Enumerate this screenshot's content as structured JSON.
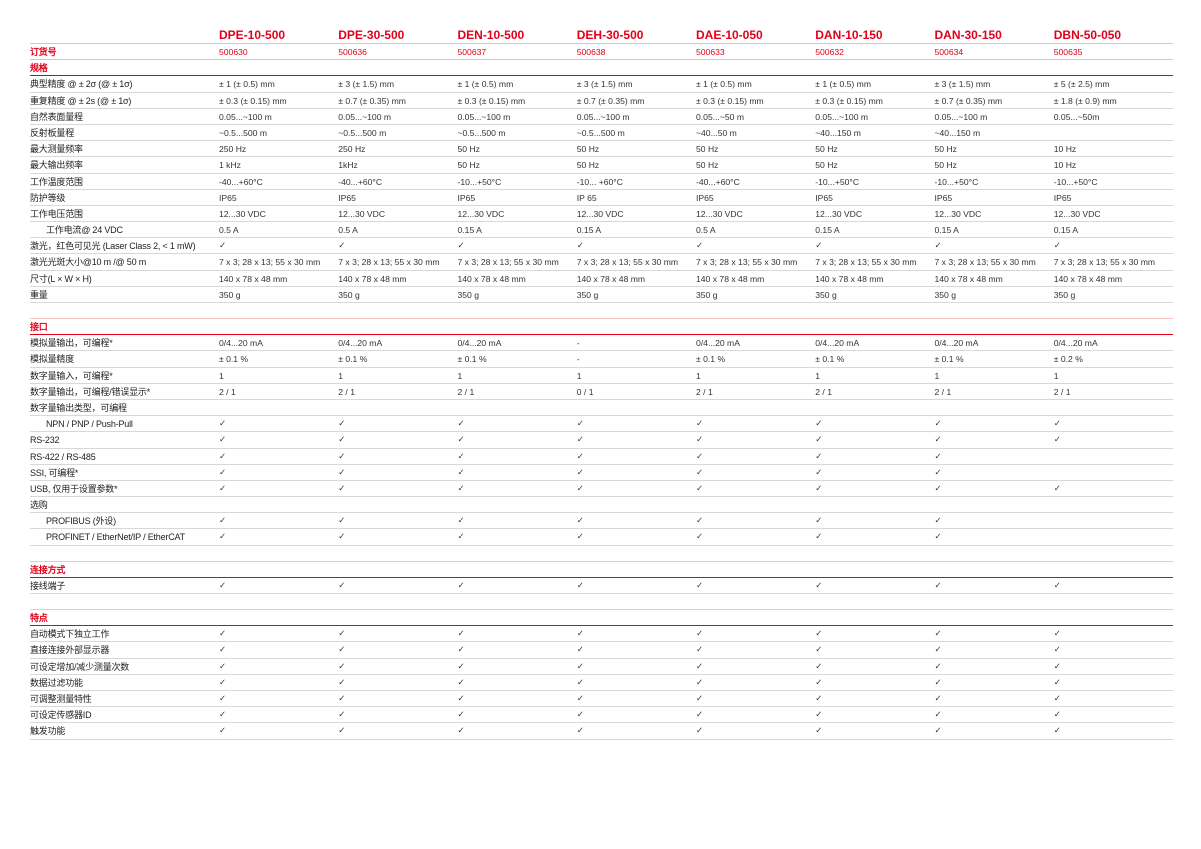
{
  "columns": [
    "DPE-10-500",
    "DPE-30-500",
    "DEN-10-500",
    "DEH-30-500",
    "DAE-10-050",
    "DAN-10-150",
    "DAN-30-150",
    "DBN-50-050"
  ],
  "order": {
    "label": "订货号",
    "values": [
      "500630",
      "500636",
      "500637",
      "500638",
      "500633",
      "500632",
      "500634",
      "500635"
    ]
  },
  "sections": [
    {
      "title": "规格",
      "rows": [
        {
          "label": "典型精度 @ ± 2σ (@ ± 1σ)",
          "values": [
            "± 1 (± 0.5) mm",
            "± 3 (± 1.5) mm",
            "± 1 (± 0.5) mm",
            "± 3 (± 1.5) mm",
            "± 1 (± 0.5) mm",
            "± 1 (± 0.5) mm",
            "± 3 (± 1.5) mm",
            "± 5 (± 2.5) mm"
          ]
        },
        {
          "label": "重复精度 @ ± 2s (@ ± 1σ)",
          "values": [
            "± 0.3 (± 0.15) mm",
            "± 0.7 (± 0.35) mm",
            "± 0.3 (± 0.15) mm",
            "± 0.7 (± 0.35) mm",
            "± 0.3 (± 0.15) mm",
            "± 0.3 (± 0.15) mm",
            "± 0.7 (± 0.35) mm",
            "± 1.8 (± 0.9) mm"
          ]
        },
        {
          "label": "自然表面量程",
          "values": [
            "0.05...~100 m",
            "0.05...~100 m",
            "0.05...~100 m",
            "0.05...~100 m",
            "0.05...~50 m",
            "0.05...~100 m",
            "0.05...~100 m",
            "0.05...~50m"
          ]
        },
        {
          "label": "反射板量程",
          "values": [
            " ~0.5...500 m",
            " ~0.5...500 m",
            " ~0.5...500 m",
            " ~0.5...500 m",
            "~40...50 m",
            "~40...150 m",
            "~40...150 m",
            ""
          ]
        },
        {
          "label": "最大测量频率",
          "values": [
            "250 Hz",
            "250 Hz",
            "50 Hz",
            "50 Hz",
            "50 Hz",
            "50 Hz",
            "50 Hz",
            "10 Hz"
          ]
        },
        {
          "label": "最大输出频率",
          "values": [
            "1 kHz",
            "1kHz",
            "50 Hz",
            "50 Hz",
            "50 Hz",
            "50 Hz",
            "50 Hz",
            "10 Hz"
          ]
        },
        {
          "label": "工作温度范围",
          "values": [
            "-40...+60°C",
            "-40...+60°C",
            "-10...+50°C",
            "-10... +60°C",
            "-40...+60°C",
            "-10...+50°C",
            "-10...+50°C",
            "-10...+50°C"
          ]
        },
        {
          "label": "防护等级",
          "values": [
            "IP65",
            "IP65",
            "IP65",
            "IP 65",
            "IP65",
            "IP65",
            "IP65",
            "IP65"
          ]
        },
        {
          "label": "工作电压范围",
          "values": [
            "12...30 VDC",
            "12...30 VDC",
            "12...30 VDC",
            "12...30 VDC",
            "12...30 VDC",
            "12...30 VDC",
            "12...30 VDC",
            "12...30 VDC"
          ]
        },
        {
          "label": "工作电流@ 24 VDC",
          "indent": true,
          "values": [
            "0.5 A",
            "0.5 A",
            "0.15 A",
            "0.15 A",
            "0.5 A",
            "0.15 A",
            "0.15 A",
            "0.15 A"
          ]
        },
        {
          "label": "激光，红色可见光 (Laser Class 2, < 1 mW)",
          "values": [
            "✓",
            "✓",
            "✓",
            "✓",
            "✓",
            "✓",
            "✓",
            "✓"
          ]
        },
        {
          "label": "激光光斑大小@10 m /@ 50 m",
          "values": [
            "7 x 3; 28 x 13; 55 x 30 mm",
            "7 x 3; 28 x 13; 55 x 30 mm",
            "7 x 3; 28 x 13; 55 x 30 mm",
            "7 x 3; 28 x 13; 55 x 30 mm",
            "7 x 3; 28 x 13; 55 x 30 mm",
            "7 x 3; 28 x 13; 55 x 30 mm",
            "7 x 3; 28 x 13; 55 x 30 mm",
            "7 x 3; 28 x 13; 55 x 30 mm"
          ]
        },
        {
          "label": "尺寸(L × W × H)",
          "values": [
            "140 x 78 x 48 mm",
            "140 x 78 x 48 mm",
            "140 x 78 x 48 mm",
            "140 x 78 x 48 mm",
            "140 x 78 x 48 mm",
            "140 x 78 x 48 mm",
            "140 x 78 x 48 mm",
            "140 x 78 x 48 mm"
          ]
        },
        {
          "label": "重量",
          "values": [
            "350 g",
            "350 g",
            "350 g",
            "350 g",
            "350 g",
            "350 g",
            "350 g",
            "350 g"
          ]
        }
      ]
    },
    {
      "title": "接口",
      "rows": [
        {
          "label": "模拟量输出，可编程*",
          "values": [
            "0/4...20 mA",
            "0/4...20 mA",
            "0/4...20 mA",
            "-",
            "0/4...20 mA",
            "0/4...20 mA",
            "0/4...20 mA",
            "0/4...20 mA"
          ]
        },
        {
          "label": "模拟量精度",
          "values": [
            "± 0.1 %",
            "± 0.1 %",
            "± 0.1 %",
            "-",
            "± 0.1 %",
            "± 0.1 %",
            "± 0.1 %",
            "± 0.2 %"
          ]
        },
        {
          "label": "数字量输入，可编程*",
          "values": [
            "1",
            "1",
            "1",
            "1",
            "1",
            "1",
            "1",
            "1"
          ]
        },
        {
          "label": "数字量输出，可编程/错误显示*",
          "values": [
            "2 / 1",
            "2 / 1",
            "2 / 1",
            "0 / 1",
            "2 / 1",
            "2 / 1",
            "2 / 1",
            "2 / 1"
          ]
        },
        {
          "label": "数字量输出类型，可编程",
          "values": [
            "",
            "",
            "",
            "",
            "",
            "",
            "",
            ""
          ]
        },
        {
          "label": "NPN / PNP / Push-Pull",
          "indent": true,
          "values": [
            "✓",
            "✓",
            "✓",
            "✓",
            "✓",
            "✓",
            "✓",
            "✓"
          ]
        },
        {
          "label": "RS-232",
          "values": [
            "✓",
            "✓",
            "✓",
            "✓",
            "✓",
            "✓",
            "✓",
            "✓"
          ]
        },
        {
          "label": "RS-422 / RS-485",
          "values": [
            "✓",
            "✓",
            "✓",
            "✓",
            "✓",
            "✓",
            "✓",
            ""
          ]
        },
        {
          "label": "SSI, 可编程*",
          "values": [
            "✓",
            "✓",
            "✓",
            "✓",
            "✓",
            "✓",
            "✓",
            ""
          ]
        },
        {
          "label": "USB, 仅用于设置参数*",
          "values": [
            "✓",
            "✓",
            "✓",
            "✓",
            "✓",
            "✓",
            "✓",
            "✓"
          ]
        },
        {
          "label": "选购",
          "values": [
            "",
            "",
            "",
            "",
            "",
            "",
            "",
            ""
          ]
        },
        {
          "label": "PROFIBUS (外设)",
          "indent": true,
          "values": [
            "✓",
            "✓",
            "✓",
            "✓",
            "✓",
            "✓",
            "✓",
            ""
          ]
        },
        {
          "label": "PROFINET / EtherNet/IP / EtherCAT",
          "indent": true,
          "values": [
            "✓",
            "✓",
            "✓",
            "✓",
            "✓",
            "✓",
            "✓",
            ""
          ]
        }
      ]
    },
    {
      "title": "连接方式",
      "rows": [
        {
          "label": "接线端子",
          "values": [
            "✓",
            "✓",
            "✓",
            "✓",
            "✓",
            "✓",
            "✓",
            "✓"
          ]
        }
      ]
    },
    {
      "title": "特点",
      "rows": [
        {
          "label": "自动模式下独立工作",
          "values": [
            "✓",
            "✓",
            "✓",
            "✓",
            "✓",
            "✓",
            "✓",
            "✓"
          ]
        },
        {
          "label": "直接连接外部显示器",
          "values": [
            "✓",
            "✓",
            "✓",
            "✓",
            "✓",
            "✓",
            "✓",
            "✓"
          ]
        },
        {
          "label": "可设定增加/减少测量次数",
          "values": [
            "✓",
            "✓",
            "✓",
            "✓",
            "✓",
            "✓",
            "✓",
            "✓"
          ]
        },
        {
          "label": "数据过滤功能",
          "values": [
            "✓",
            "✓",
            "✓",
            "✓",
            "✓",
            "✓",
            "✓",
            "✓"
          ]
        },
        {
          "label": "可调整测量特性",
          "values": [
            "✓",
            "✓",
            "✓",
            "✓",
            "✓",
            "✓",
            "✓",
            "✓"
          ]
        },
        {
          "label": "可设定传感器ID",
          "values": [
            "✓",
            "✓",
            "✓",
            "✓",
            "✓",
            "✓",
            "✓",
            "✓"
          ]
        },
        {
          "label": "触发功能",
          "values": [
            "✓",
            "✓",
            "✓",
            "✓",
            "✓",
            "✓",
            "✓",
            "✓"
          ]
        }
      ]
    }
  ],
  "colors": {
    "accent": "#e2001a",
    "rule": "#d8d8d8"
  }
}
